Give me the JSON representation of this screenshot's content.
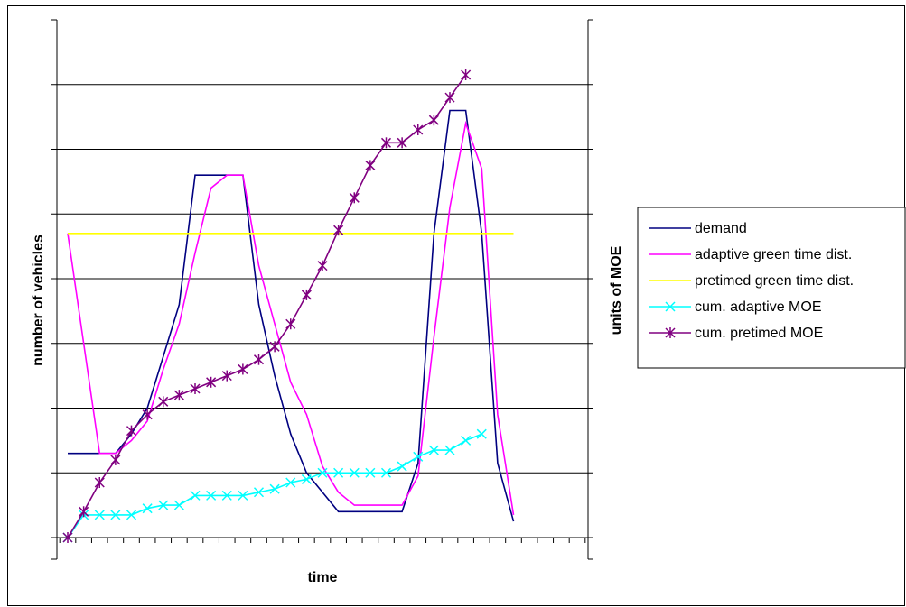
{
  "chart_data": {
    "type": "line",
    "title": "",
    "xlabel": "time",
    "ylabel": "number of vehicles",
    "y2label": "units of MOE",
    "x": [
      1,
      2,
      3,
      4,
      5,
      6,
      7,
      8,
      9,
      10,
      11,
      12,
      13,
      14,
      15,
      16,
      17,
      18,
      19,
      20,
      21,
      22,
      23,
      24,
      25,
      26,
      27,
      28,
      29,
      30,
      31,
      32,
      33
    ],
    "ylim": [
      0,
      8
    ],
    "y2lim": [
      0,
      8
    ],
    "grid": "horizontal",
    "legend_position": "right",
    "series": [
      {
        "name": "demand",
        "color": "#000080",
        "marker": "none",
        "axis": "left",
        "points": [
          [
            1,
            1.3
          ],
          [
            4,
            1.3
          ],
          [
            5,
            1.6
          ],
          [
            6,
            2.0
          ],
          [
            7,
            2.8
          ],
          [
            8,
            3.6
          ],
          [
            9,
            5.6
          ],
          [
            12,
            5.6
          ],
          [
            13,
            3.6
          ],
          [
            14,
            2.5
          ],
          [
            15,
            1.6
          ],
          [
            16,
            1.0
          ],
          [
            17,
            0.7
          ],
          [
            18,
            0.4
          ],
          [
            22,
            0.4
          ],
          [
            23,
            1.15
          ],
          [
            24,
            4.7
          ],
          [
            25,
            6.6
          ],
          [
            26,
            6.6
          ],
          [
            27,
            4.7
          ],
          [
            28,
            1.15
          ],
          [
            29,
            0.25
          ]
        ]
      },
      {
        "name": "adaptive green time dist.",
        "color": "#ff00ff",
        "marker": "none",
        "axis": "left",
        "points": [
          [
            1,
            4.7
          ],
          [
            3,
            1.3
          ],
          [
            4,
            1.3
          ],
          [
            5,
            1.5
          ],
          [
            6,
            1.8
          ],
          [
            7,
            2.6
          ],
          [
            8,
            3.3
          ],
          [
            9,
            4.4
          ],
          [
            10,
            5.4
          ],
          [
            11,
            5.6
          ],
          [
            12,
            5.6
          ],
          [
            13,
            4.2
          ],
          [
            14,
            3.3
          ],
          [
            15,
            2.4
          ],
          [
            16,
            1.9
          ],
          [
            17,
            1.1
          ],
          [
            18,
            0.7
          ],
          [
            19,
            0.5
          ],
          [
            20,
            0.5
          ],
          [
            22,
            0.5
          ],
          [
            23,
            0.95
          ],
          [
            24,
            3.1
          ],
          [
            25,
            5.1
          ],
          [
            26,
            6.4
          ],
          [
            27,
            5.7
          ],
          [
            28,
            1.9
          ],
          [
            29,
            0.35
          ]
        ]
      },
      {
        "name": "pretimed green time dist.",
        "color": "#ffff00",
        "marker": "none",
        "axis": "left",
        "points": [
          [
            1,
            4.7
          ],
          [
            29,
            4.7
          ]
        ]
      },
      {
        "name": "cum. adaptive MOE",
        "color": "#00ffff",
        "marker": "x",
        "axis": "right",
        "points": [
          [
            1,
            0
          ],
          [
            2,
            0.35
          ],
          [
            3,
            0.35
          ],
          [
            4,
            0.35
          ],
          [
            5,
            0.35
          ],
          [
            6,
            0.45
          ],
          [
            7,
            0.5
          ],
          [
            8,
            0.5
          ],
          [
            9,
            0.65
          ],
          [
            10,
            0.65
          ],
          [
            11,
            0.65
          ],
          [
            12,
            0.65
          ],
          [
            13,
            0.7
          ],
          [
            14,
            0.75
          ],
          [
            15,
            0.85
          ],
          [
            16,
            0.9
          ],
          [
            17,
            1.0
          ],
          [
            18,
            1.0
          ],
          [
            19,
            1.0
          ],
          [
            20,
            1.0
          ],
          [
            21,
            1.0
          ],
          [
            22,
            1.1
          ],
          [
            23,
            1.25
          ],
          [
            24,
            1.35
          ],
          [
            25,
            1.35
          ],
          [
            26,
            1.5
          ],
          [
            27,
            1.6
          ]
        ]
      },
      {
        "name": "cum. pretimed MOE",
        "color": "#800080",
        "marker": "star",
        "axis": "right",
        "points": [
          [
            1,
            0
          ],
          [
            2,
            0.4
          ],
          [
            3,
            0.85
          ],
          [
            4,
            1.2
          ],
          [
            5,
            1.65
          ],
          [
            6,
            1.9
          ],
          [
            7,
            2.1
          ],
          [
            8,
            2.2
          ],
          [
            9,
            2.3
          ],
          [
            10,
            2.4
          ],
          [
            11,
            2.5
          ],
          [
            12,
            2.6
          ],
          [
            13,
            2.75
          ],
          [
            14,
            2.95
          ],
          [
            15,
            3.3
          ],
          [
            16,
            3.75
          ],
          [
            17,
            4.2
          ],
          [
            18,
            4.75
          ],
          [
            19,
            5.25
          ],
          [
            20,
            5.75
          ],
          [
            21,
            6.1
          ],
          [
            22,
            6.1
          ],
          [
            23,
            6.3
          ],
          [
            24,
            6.45
          ],
          [
            25,
            6.8
          ],
          [
            26,
            7.15
          ]
        ]
      }
    ]
  }
}
